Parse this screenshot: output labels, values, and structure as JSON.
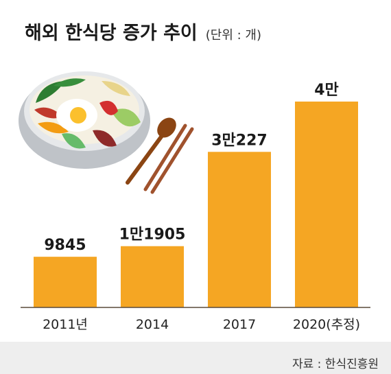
{
  "title": "해외 한식당 증가 추이",
  "unit": "(단위 : 개)",
  "source": "자료 : 한식진흥원",
  "colors": {
    "bar": "#f5a623",
    "baseline": "#5a4a3a",
    "text": "#1a1a1a",
    "footer_bg": "#eeeeee"
  },
  "illustration": {
    "name": "bibimbap-bowl-with-spoon-and-chopsticks"
  },
  "chart_data": {
    "type": "bar",
    "categories": [
      "2011년",
      "2014",
      "2017",
      "2020(추정)"
    ],
    "values": [
      9845,
      11905,
      30227,
      40000
    ],
    "value_labels": [
      "9845",
      "1만1905",
      "3만227",
      "4만"
    ],
    "ylim": [
      0,
      40000
    ],
    "grid": false,
    "title": "해외 한식당 증가 추이",
    "xlabel": "",
    "ylabel": ""
  }
}
